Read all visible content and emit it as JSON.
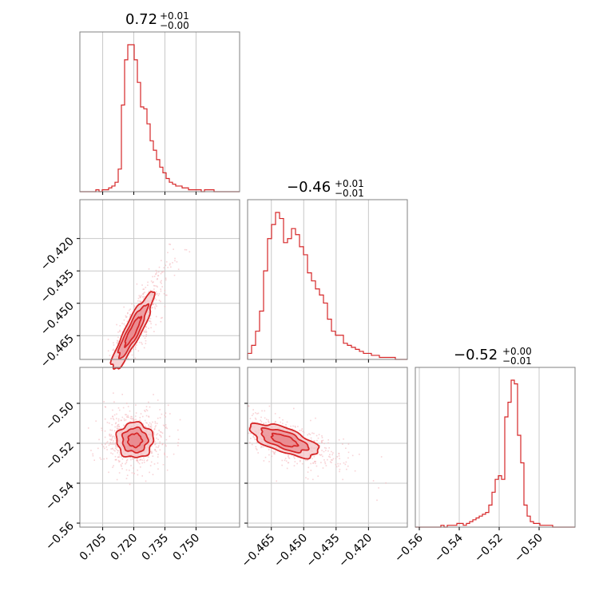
{
  "colors": {
    "line": "#d62728",
    "fill_light": "#f4c6c8",
    "fill_mid": "#e98a8e",
    "grid": "#c8c8c8",
    "frame": "#808080"
  },
  "chart_data": {
    "type": "corner",
    "parameters": 3,
    "titles": [
      {
        "main": "0.72",
        "plus": "+0.01",
        "minus": "−0.00"
      },
      {
        "main": "−0.46",
        "plus": "+0.01",
        "minus": "−0.01"
      },
      {
        "main": "−0.52",
        "plus": "+0.00",
        "minus": "−0.01"
      }
    ],
    "ranges": [
      [
        0.694,
        0.771
      ],
      [
        -0.476,
        -0.402
      ],
      [
        -0.562,
        -0.482
      ]
    ],
    "ticks": [
      {
        "values": [
          0.705,
          0.72,
          0.735,
          0.75
        ],
        "labels": [
          "0.705",
          "0.720",
          "0.735",
          "0.750"
        ]
      },
      {
        "values": [
          -0.465,
          -0.45,
          -0.435,
          -0.42
        ],
        "labels": [
          "−0.465",
          "−0.450",
          "−0.435",
          "−0.420"
        ]
      },
      {
        "values": [
          -0.56,
          -0.54,
          -0.52,
          -0.5
        ],
        "labels": [
          "−0.56",
          "−0.54",
          "−0.52",
          "−0.50"
        ]
      }
    ],
    "histograms": [
      {
        "bins": [
          0.694,
          0.771
        ],
        "counts": [
          0,
          0,
          0,
          0,
          0,
          1,
          0,
          1,
          1,
          2,
          3,
          5,
          12,
          46,
          70,
          78,
          78,
          70,
          58,
          45,
          44,
          36,
          27,
          22,
          17,
          13,
          10,
          7,
          5,
          4,
          3,
          3,
          2,
          2,
          1,
          1,
          1,
          1,
          0,
          1,
          1,
          1,
          0,
          0,
          0,
          0,
          0,
          0,
          0,
          0
        ]
      },
      {
        "bins": [
          -0.476,
          -0.402
        ],
        "counts": [
          3,
          7,
          14,
          24,
          44,
          60,
          67,
          73,
          70,
          58,
          60,
          65,
          62,
          56,
          52,
          43,
          39,
          35,
          32,
          28,
          20,
          14,
          12,
          12,
          8,
          7,
          6,
          5,
          4,
          3,
          3,
          2,
          2,
          1,
          1,
          1,
          1,
          0,
          0,
          0
        ]
      },
      {
        "bins": [
          -0.562,
          -0.482
        ],
        "counts": [
          0,
          0,
          0,
          0,
          0,
          0,
          0,
          0,
          1,
          0,
          1,
          1,
          1,
          2,
          2,
          1,
          2,
          3,
          4,
          5,
          6,
          7,
          8,
          12,
          19,
          26,
          28,
          26,
          60,
          68,
          80,
          78,
          50,
          35,
          12,
          6,
          3,
          2,
          2,
          1,
          1,
          1,
          1,
          0,
          0,
          0,
          0,
          0,
          0,
          0
        ]
      }
    ],
    "pairs": [
      {
        "x": 0,
        "y": 1,
        "center": [
          0.7195,
          -0.463
        ],
        "sigma": [
          0.0048,
          0.0085
        ],
        "rho": 0.9
      },
      {
        "x": 0,
        "y": 2,
        "center": [
          0.7205,
          -0.5185
        ],
        "sigma": [
          0.0042,
          0.0042
        ],
        "rho": 0.0
      },
      {
        "x": 1,
        "y": 2,
        "center": [
          -0.459,
          -0.5185
        ],
        "sigma": [
          0.0075,
          0.004
        ],
        "rho": -0.65
      }
    ]
  }
}
